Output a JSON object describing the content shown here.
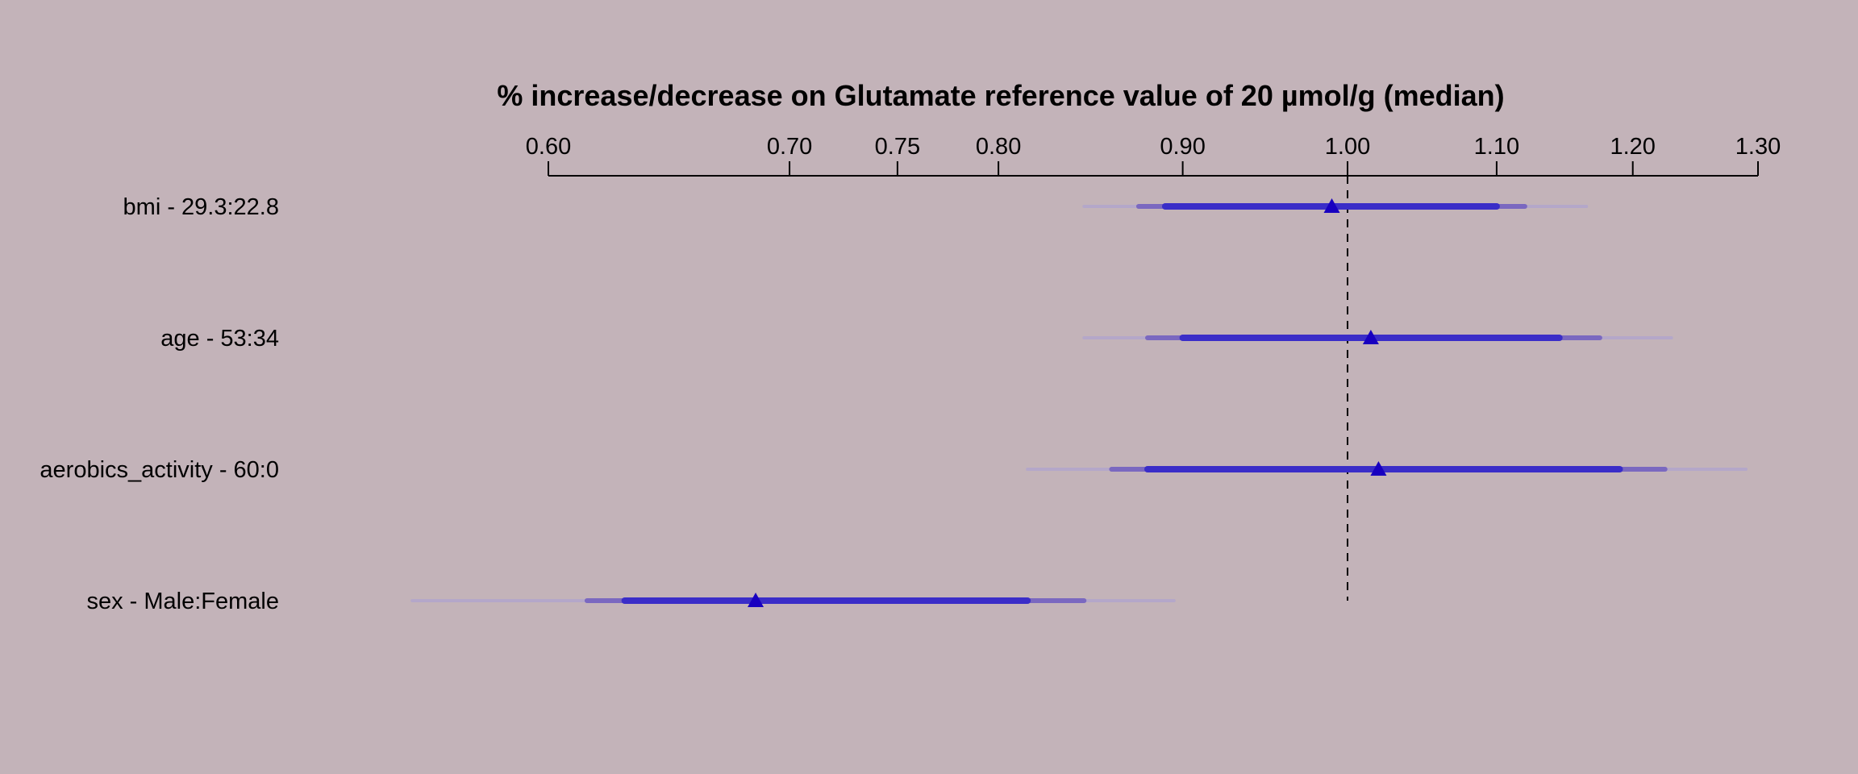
{
  "chart_data": {
    "type": "forest",
    "title": "% increase/decrease on Glutamate reference value of 20 µmol/g (median)",
    "scale": "log",
    "xlim": [
      0.6,
      1.3
    ],
    "ticks": [
      {
        "value": 0.6,
        "label": "0.60"
      },
      {
        "value": 0.7,
        "label": "0.70"
      },
      {
        "value": 0.75,
        "label": "0.75"
      },
      {
        "value": 0.8,
        "label": "0.80"
      },
      {
        "value": 0.9,
        "label": "0.90"
      },
      {
        "value": 1.0,
        "label": "1.00"
      },
      {
        "value": 1.1,
        "label": "1.10"
      },
      {
        "value": 1.2,
        "label": "1.20"
      },
      {
        "value": 1.3,
        "label": "1.30"
      }
    ],
    "reference_line": 1.0,
    "rows": [
      {
        "label": "bmi - 29.3:22.8",
        "estimate": 0.99,
        "inner": [
          0.89,
          1.1
        ],
        "middle": [
          0.875,
          1.12
        ],
        "outer": [
          0.845,
          1.165
        ]
      },
      {
        "label": "age - 53:34",
        "estimate": 1.015,
        "inner": [
          0.9,
          1.145
        ],
        "middle": [
          0.88,
          1.175
        ],
        "outer": [
          0.845,
          1.23
        ]
      },
      {
        "label": "aerobics_activity - 60:0",
        "estimate": 1.02,
        "inner": [
          0.88,
          1.19
        ],
        "middle": [
          0.86,
          1.225
        ],
        "outer": [
          0.815,
          1.29
        ]
      },
      {
        "label": "sex - Male:Female",
        "estimate": 0.685,
        "inner": [
          0.63,
          0.815
        ],
        "middle": [
          0.615,
          0.845
        ],
        "outer": [
          0.55,
          0.895
        ]
      }
    ],
    "colors": {
      "background": "#c3b3b9",
      "inner": "#3a2dc8",
      "middle": "#7a68c0",
      "outer": "#b4a7c9",
      "marker": "#1800c0"
    }
  }
}
